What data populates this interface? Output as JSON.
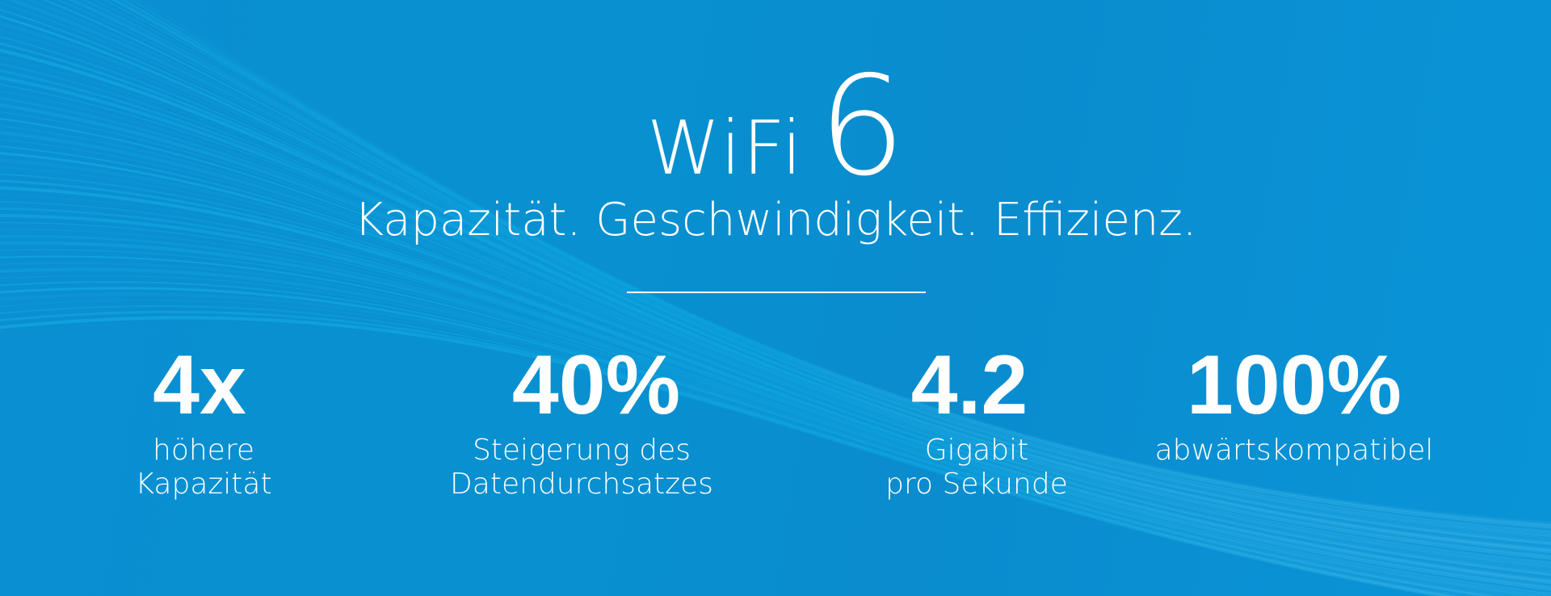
{
  "title": {
    "text": "WiFi",
    "number": "6"
  },
  "tagline": "Kapazität. Geschwindigkeit. Effizienz.",
  "stats": [
    {
      "value": "4x",
      "label_line1": "höhere",
      "label_line2": "Kapazität"
    },
    {
      "value": "40%",
      "label_line1": "Steigerung des",
      "label_line2": "Datendurchsatzes"
    },
    {
      "value": "4.2",
      "label_line1": "Gigabit",
      "label_line2": "pro Sekunde"
    },
    {
      "value": "100%",
      "label_line1": "abwärtskompatibel",
      "label_line2": ""
    }
  ],
  "colors": {
    "background": "#0a8fd2",
    "streaks": "#2ec8f4",
    "text": "#ffffff"
  }
}
